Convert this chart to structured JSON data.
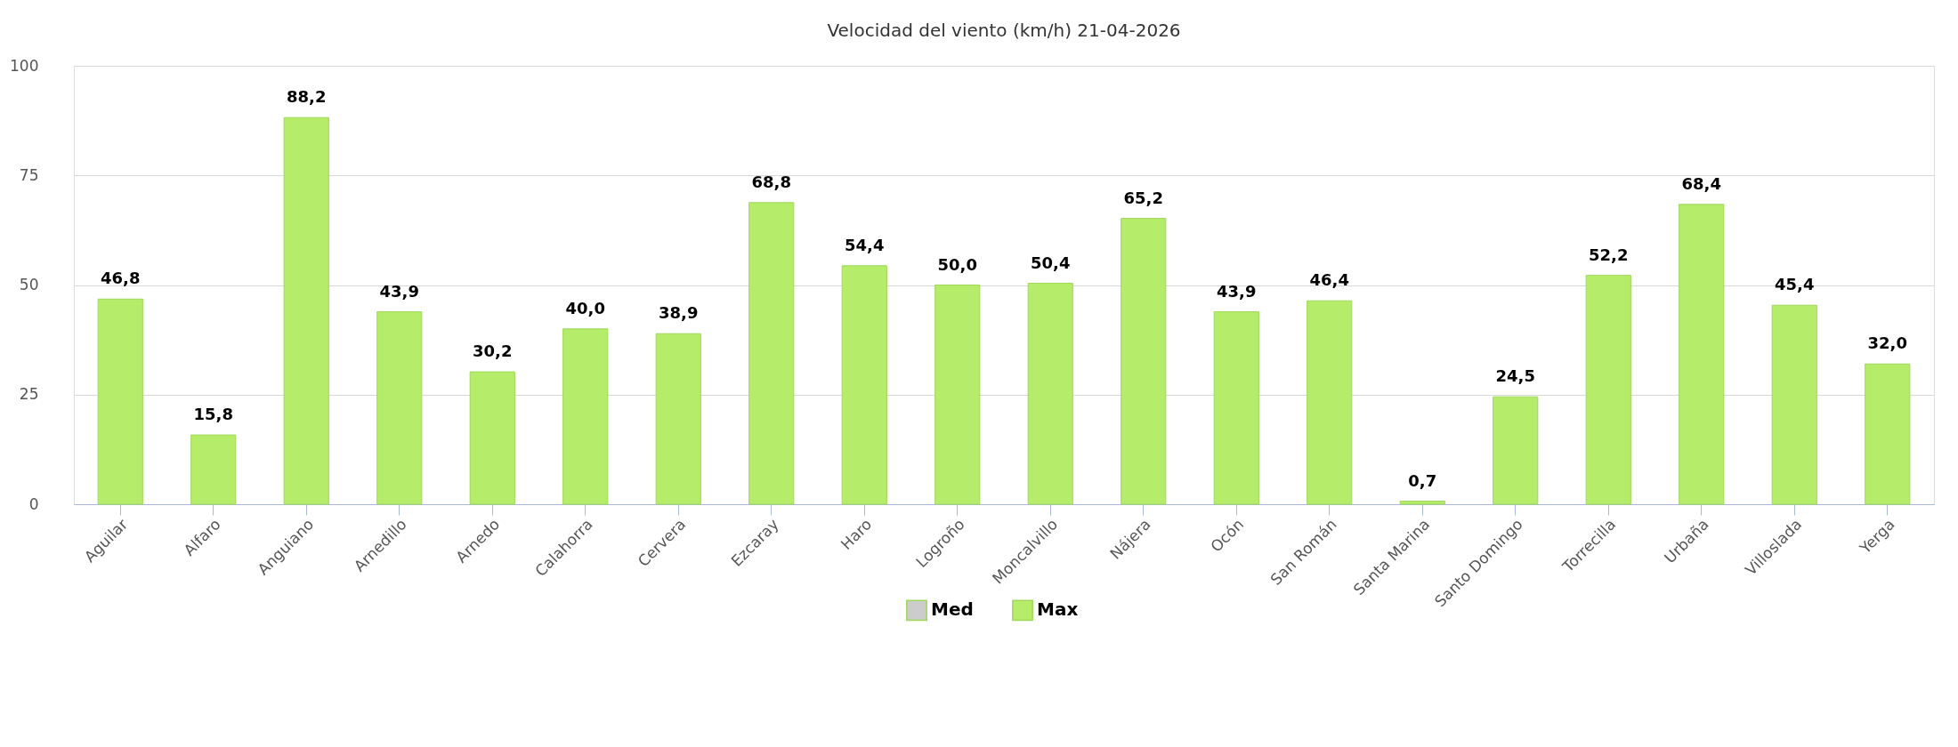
{
  "chart_data": {
    "type": "bar",
    "title": "Velocidad del viento (km/h) 21-04-2026",
    "categories": [
      "Aguilar",
      "Alfaro",
      "Anguiano",
      "Arnedillo",
      "Arnedo",
      "Calahorra",
      "Cervera",
      "Ezcaray",
      "Haro",
      "Logroño",
      "Moncalvillo",
      "Nájera",
      "Ocón",
      "San Román",
      "Santa Marina",
      "Santo Domingo",
      "Torrecilla",
      "Urbaña",
      "Villoslada",
      "Yerga"
    ],
    "series": [
      {
        "name": "Med",
        "color": "#cccccc",
        "values": [
          null,
          null,
          null,
          null,
          null,
          null,
          null,
          null,
          null,
          null,
          null,
          null,
          null,
          null,
          null,
          null,
          null,
          null,
          null,
          null
        ]
      },
      {
        "name": "Max",
        "color": "#b5ec6a",
        "values": [
          46.8,
          15.8,
          88.2,
          43.9,
          30.2,
          40.0,
          38.9,
          68.8,
          54.4,
          50.0,
          50.4,
          65.2,
          43.9,
          46.4,
          0.7,
          24.5,
          52.2,
          68.4,
          45.4,
          32.0
        ],
        "value_labels": [
          "46,8",
          "15,8",
          "88,2",
          "43,9",
          "30,2",
          "40,0",
          "38,9",
          "68,8",
          "54,4",
          "50,0",
          "50,4",
          "65,2",
          "43,9",
          "46,4",
          "0,7",
          "24,5",
          "52,2",
          "68,4",
          "45,4",
          "32,0"
        ]
      }
    ],
    "ylim": [
      0,
      100
    ],
    "yticks": [
      0,
      25,
      50,
      75,
      100
    ],
    "grid": "y",
    "legend": "bottom"
  }
}
